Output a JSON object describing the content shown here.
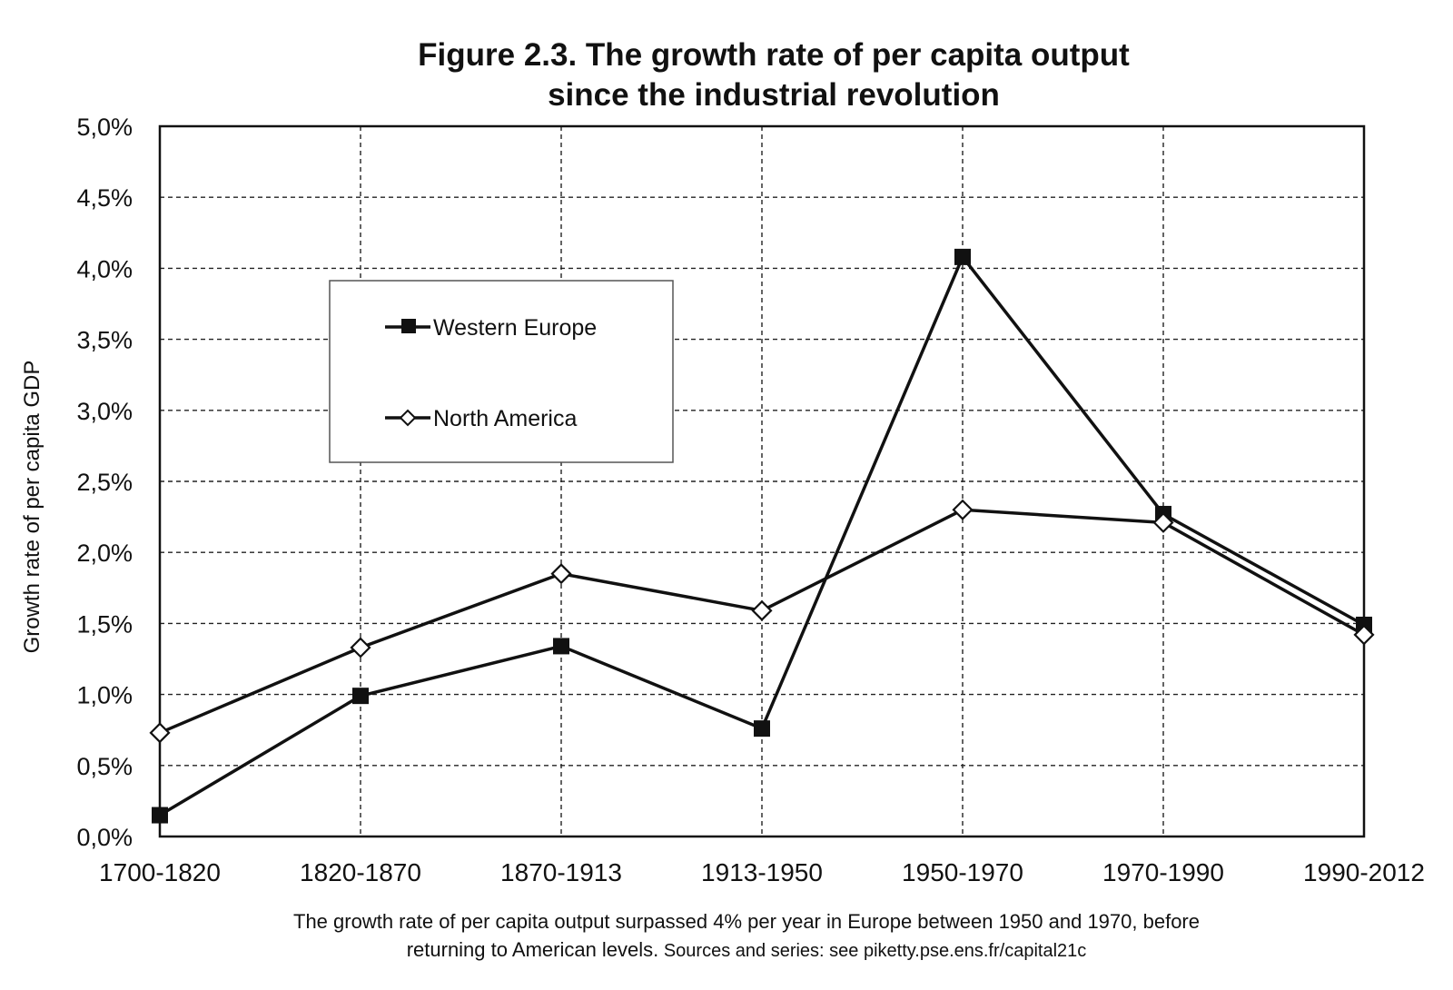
{
  "chart_data": {
    "type": "line",
    "title": [
      "Figure 2.3. The growth rate of per capita output",
      "since the industrial revolution"
    ],
    "xlabel": "",
    "ylabel": "Growth rate of per capita GDP",
    "categories": [
      "1700-1820",
      "1820-1870",
      "1870-1913",
      "1913-1950",
      "1950-1970",
      "1970-1990",
      "1990-2012"
    ],
    "ylim": [
      0,
      5
    ],
    "yticks": [
      {
        "value": 0.0,
        "label": "0,0%"
      },
      {
        "value": 0.5,
        "label": "0,5%"
      },
      {
        "value": 1.0,
        "label": "1,0%"
      },
      {
        "value": 1.5,
        "label": "1,5%"
      },
      {
        "value": 2.0,
        "label": "2,0%"
      },
      {
        "value": 2.5,
        "label": "2,5%"
      },
      {
        "value": 3.0,
        "label": "3,0%"
      },
      {
        "value": 3.5,
        "label": "3,5%"
      },
      {
        "value": 4.0,
        "label": "4,0%"
      },
      {
        "value": 4.5,
        "label": "4,5%"
      },
      {
        "value": 5.0,
        "label": "5,0%"
      }
    ],
    "grid": true,
    "legend_position": "top-left",
    "series": [
      {
        "name": "Western Europe",
        "marker": "filled-square",
        "color": "#111111",
        "values": [
          0.15,
          0.99,
          1.34,
          0.76,
          4.08,
          2.27,
          1.49
        ]
      },
      {
        "name": "North America",
        "marker": "open-diamond",
        "color": "#111111",
        "values": [
          0.73,
          1.33,
          1.85,
          1.59,
          2.3,
          2.21,
          1.42
        ]
      }
    ]
  },
  "caption": {
    "line1": "The growth rate of per capita output surpassed 4% per year in Europe between 1950 and 1970, before",
    "line2a": "returning to American levels.",
    "line2b": " Sources and series: see piketty.pse.ens.fr/capital21c"
  }
}
